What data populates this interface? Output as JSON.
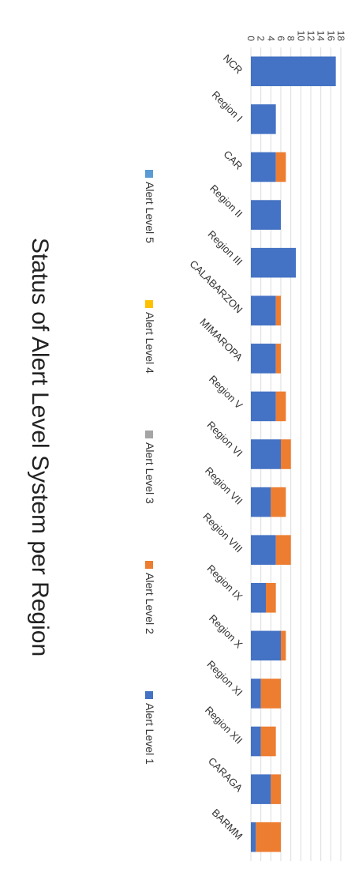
{
  "chart_data": {
    "type": "bar",
    "orientation": "stacked, rotated 90 degrees",
    "title": "Status of Alert Level System per Region",
    "categories": [
      "NCR",
      "Region I",
      "CAR",
      "Region II",
      "Region III",
      "CALABARZON",
      "MIMAROPA",
      "Region V",
      "Region VI",
      "Region VII",
      "Region VIII",
      "Region IX",
      "Region X",
      "Region XI",
      "Region XII",
      "CARAGA",
      "BARMM"
    ],
    "series": [
      {
        "name": "Alert Level 1",
        "color": "#4472c4",
        "values": [
          17,
          5,
          5,
          6,
          9,
          5,
          5,
          5,
          6,
          4,
          5,
          3,
          6,
          2,
          2,
          4,
          1
        ]
      },
      {
        "name": "Alert Level 2",
        "color": "#ed7d31",
        "values": [
          0,
          0,
          2,
          0,
          0,
          1,
          1,
          2,
          2,
          3,
          3,
          2,
          1,
          4,
          3,
          2,
          5
        ]
      },
      {
        "name": "Alert Level 3",
        "color": "#a5a5a5",
        "values": [
          0,
          0,
          0,
          0,
          0,
          0,
          0,
          0,
          0,
          0,
          0,
          0,
          0,
          0,
          0,
          0,
          0
        ]
      },
      {
        "name": "Alert Level 4",
        "color": "#ffc000",
        "values": [
          0,
          0,
          0,
          0,
          0,
          0,
          0,
          0,
          0,
          0,
          0,
          0,
          0,
          0,
          0,
          0,
          0
        ]
      },
      {
        "name": "Alert Level 5",
        "color": "#5b9bd5",
        "values": [
          0,
          0,
          0,
          0,
          0,
          0,
          0,
          0,
          0,
          0,
          0,
          0,
          0,
          0,
          0,
          0,
          0
        ]
      }
    ],
    "ylim": [
      0,
      18
    ],
    "yticks": [
      "0",
      "2",
      "4",
      "6",
      "8",
      "10",
      "12",
      "14",
      "16",
      "18"
    ],
    "legend": [
      "Alert Level 5",
      "Alert Level 4",
      "Alert Level 3",
      "Alert Level 2",
      "Alert Level 1"
    ],
    "legend_position": "bottom",
    "grid": true
  }
}
